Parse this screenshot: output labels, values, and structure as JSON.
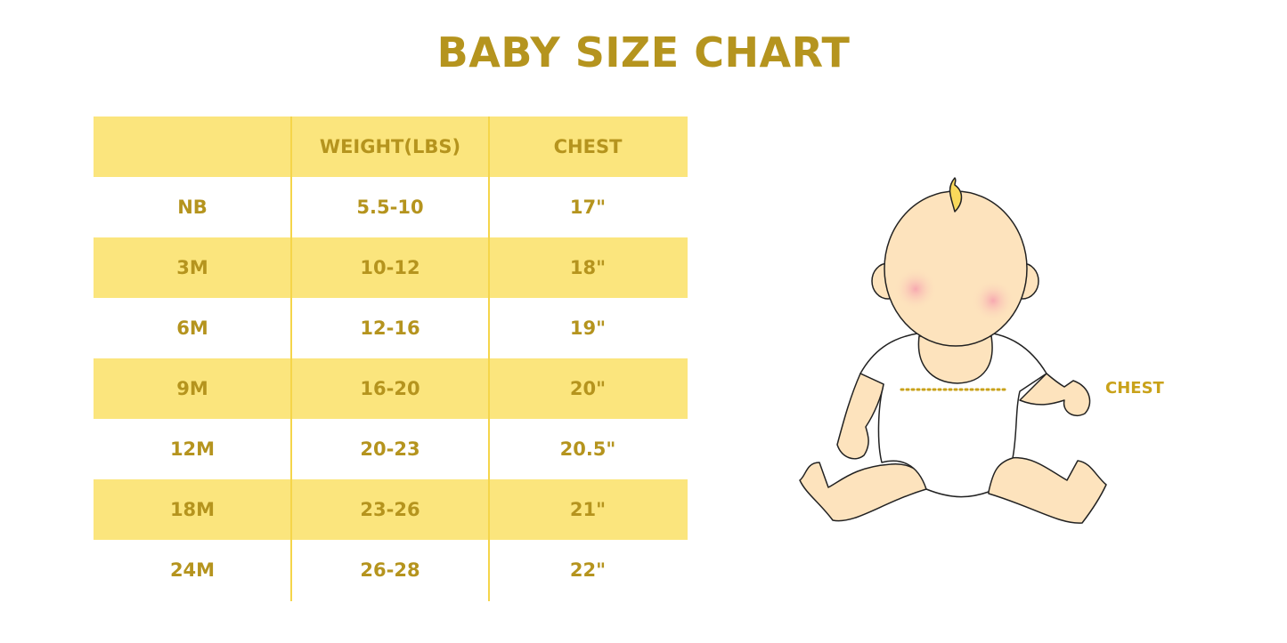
{
  "title": "BABY SIZE CHART",
  "table": {
    "headers": [
      "",
      "WEIGHT(LBS)",
      "CHEST"
    ],
    "rows": [
      [
        "NB",
        "5.5-10",
        "17\""
      ],
      [
        "3M",
        "10-12",
        "18\""
      ],
      [
        "6M",
        "12-16",
        "19\""
      ],
      [
        "9M",
        "16-20",
        "20\""
      ],
      [
        "12M",
        "20-23",
        "20.5\""
      ],
      [
        "18M",
        "23-26",
        "21\""
      ],
      [
        "24M",
        "26-28",
        "22\""
      ]
    ]
  },
  "illustration": {
    "chest_label": "CHEST"
  },
  "colors": {
    "accent_text": "#B5941E",
    "row_fill": "#FBE57D",
    "divider": "#F5D54A",
    "skin": "#FDE3BD"
  }
}
